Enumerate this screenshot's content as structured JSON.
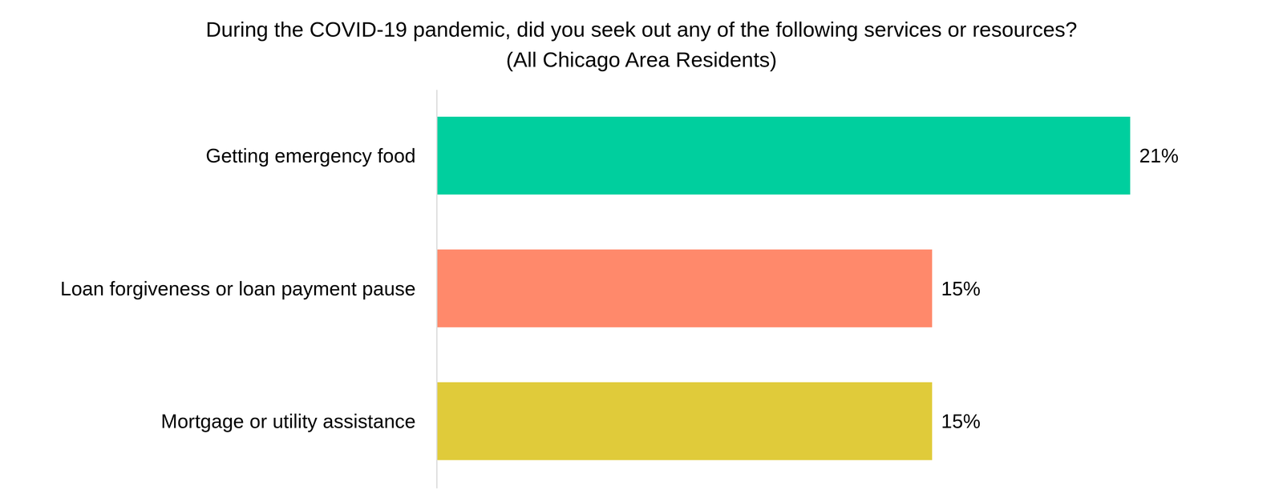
{
  "chart_data": {
    "type": "bar",
    "orientation": "horizontal",
    "title": "During the COVID-19 pandemic, did you seek out any of the following services or resources?",
    "subtitle": "(All Chicago Area Residents)",
    "categories": [
      "Getting emergency food",
      "Loan forgiveness or loan payment pause",
      "Mortgage or utility assistance"
    ],
    "values": [
      21,
      15,
      15
    ],
    "value_labels": [
      "21%",
      "15%",
      "15%"
    ],
    "colors": [
      "#00cf9e",
      "#ff896b",
      "#e0cb3a"
    ],
    "xlim": [
      0,
      21
    ],
    "data_labels": true,
    "tick_labels": false,
    "grid": false
  }
}
